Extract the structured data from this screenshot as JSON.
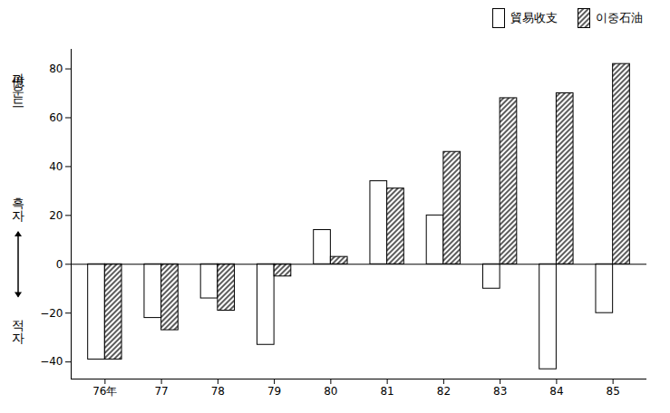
{
  "chart_data": {
    "type": "bar",
    "ylabel": "億파운드",
    "annotations": [
      "흑자",
      "적자"
    ],
    "categories": [
      "76年",
      "77",
      "78",
      "79",
      "80",
      "81",
      "82",
      "83",
      "84",
      "85"
    ],
    "series": [
      {
        "name": "貿易收支",
        "color": "#ffffff",
        "values": [
          -39,
          -22,
          -14,
          -33,
          14,
          34,
          20,
          -10,
          -43,
          -20
        ]
      },
      {
        "name": "이중石油",
        "color": "#333333",
        "values": [
          -39,
          -27,
          -19,
          -5,
          3,
          31,
          46,
          68,
          70,
          82
        ]
      }
    ],
    "ylim": [
      -47,
      88
    ],
    "yticks": [
      -40,
      -20,
      0,
      20,
      40,
      60,
      80
    ],
    "legend": "top"
  }
}
